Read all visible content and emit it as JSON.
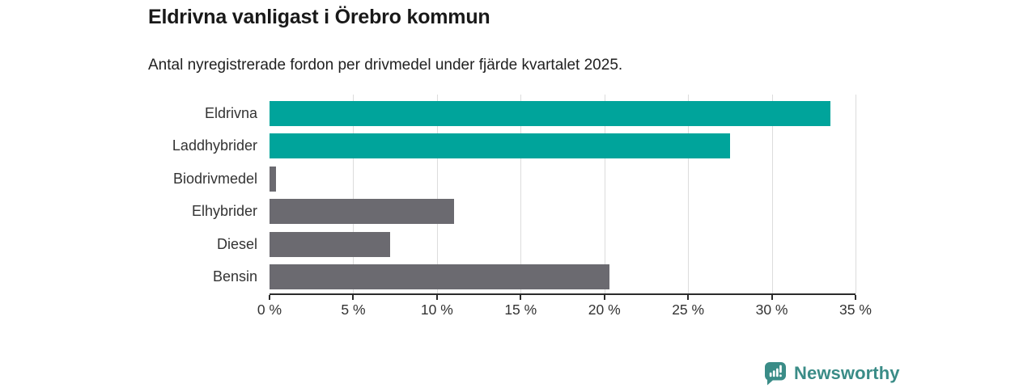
{
  "title": "Eldrivna vanligast i Örebro kommun",
  "subtitle": "Antal nyregistrerade fordon per drivmedel under fjärde kvartalet 2025.",
  "chart_data": {
    "type": "bar",
    "orientation": "horizontal",
    "title": "Eldrivna vanligast i Örebro kommun",
    "subtitle": "Antal nyregistrerade fordon per drivmedel under fjärde kvartalet 2025.",
    "categories": [
      "Eldrivna",
      "Laddhybrider",
      "Biodrivmedel",
      "Elhybrider",
      "Diesel",
      "Bensin"
    ],
    "values": [
      33.5,
      27.5,
      0.4,
      11.0,
      7.2,
      20.3
    ],
    "unit": "%",
    "xlim": [
      0,
      35
    ],
    "x_ticks": [
      0,
      5,
      10,
      15,
      20,
      25,
      30,
      35
    ],
    "x_tick_labels": [
      "0 %",
      "5 %",
      "10 %",
      "15 %",
      "20 %",
      "25 %",
      "30 %",
      "35 %"
    ],
    "bar_colors": [
      "#00a49b",
      "#00a49b",
      "#6b6a70",
      "#6b6a70",
      "#6b6a70",
      "#6b6a70"
    ],
    "highlight_color": "#00a49b",
    "default_color": "#6b6a70",
    "grid": true,
    "gridline_color": "#dcdcdc",
    "axis_color": "#2b2b2b",
    "legend": "none"
  },
  "footer": {
    "brand": "Newsworthy",
    "brand_color": "#3a8c87",
    "logo_icon": "bar-chart-speech-bubble-icon"
  }
}
